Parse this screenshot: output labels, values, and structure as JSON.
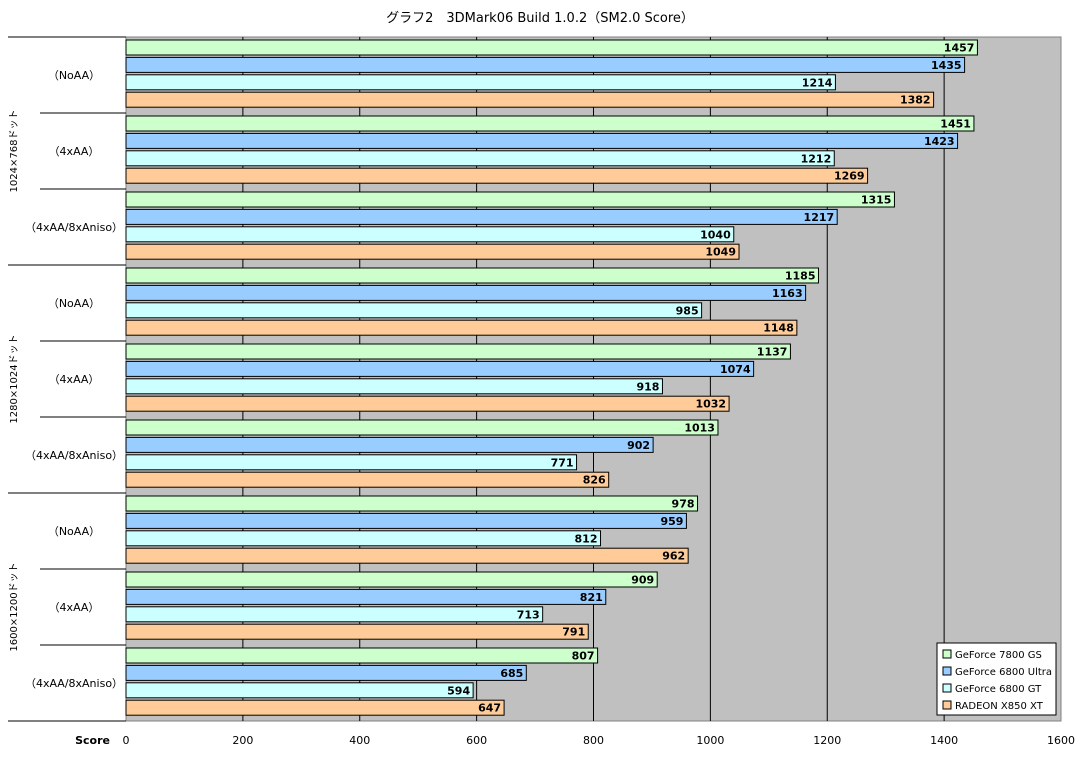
{
  "chart_data": {
    "type": "bar",
    "orientation": "horizontal",
    "title": "グラフ2　3DMark06  Build 1.0.2（SM2.0 Score）",
    "xlabel": "Score",
    "xlim": [
      0,
      1600
    ],
    "xticks": [
      "0",
      "200",
      "400",
      "600",
      "800",
      "1000",
      "1200",
      "1400",
      "1600"
    ],
    "grid": true,
    "legend_position": "bottom-right",
    "groups": [
      {
        "label": "1024×768ドット",
        "subcategories": [
          "（NoAA）",
          "（4xAA）",
          "（4xAA/8xAniso）"
        ]
      },
      {
        "label": "1280×1024ドット",
        "subcategories": [
          "（NoAA）",
          "（4xAA）",
          "（4xAA/8xAniso）"
        ]
      },
      {
        "label": "1600×1200ドット",
        "subcategories": [
          "（NoAA）",
          "（4xAA）",
          "（4xAA/8xAniso）"
        ]
      }
    ],
    "series": [
      {
        "name": "GeForce 7800 GS",
        "color": "#ccffcc",
        "values": [
          1457,
          1451,
          1315,
          1185,
          1137,
          1013,
          978,
          909,
          807
        ]
      },
      {
        "name": "GeForce 6800 Ultra",
        "color": "#99ccff",
        "values": [
          1435,
          1423,
          1217,
          1163,
          1074,
          902,
          959,
          821,
          685
        ]
      },
      {
        "name": "GeForce 6800 GT",
        "color": "#ccffff",
        "values": [
          1214,
          1212,
          1040,
          985,
          918,
          771,
          812,
          713,
          594
        ]
      },
      {
        "name": "RADEON X850 XT",
        "color": "#ffcc99",
        "values": [
          1382,
          1269,
          1049,
          1148,
          1032,
          826,
          962,
          791,
          647
        ]
      }
    ]
  },
  "colors": {
    "plot_background": "#c0c0c0",
    "gridline": "#000000"
  }
}
